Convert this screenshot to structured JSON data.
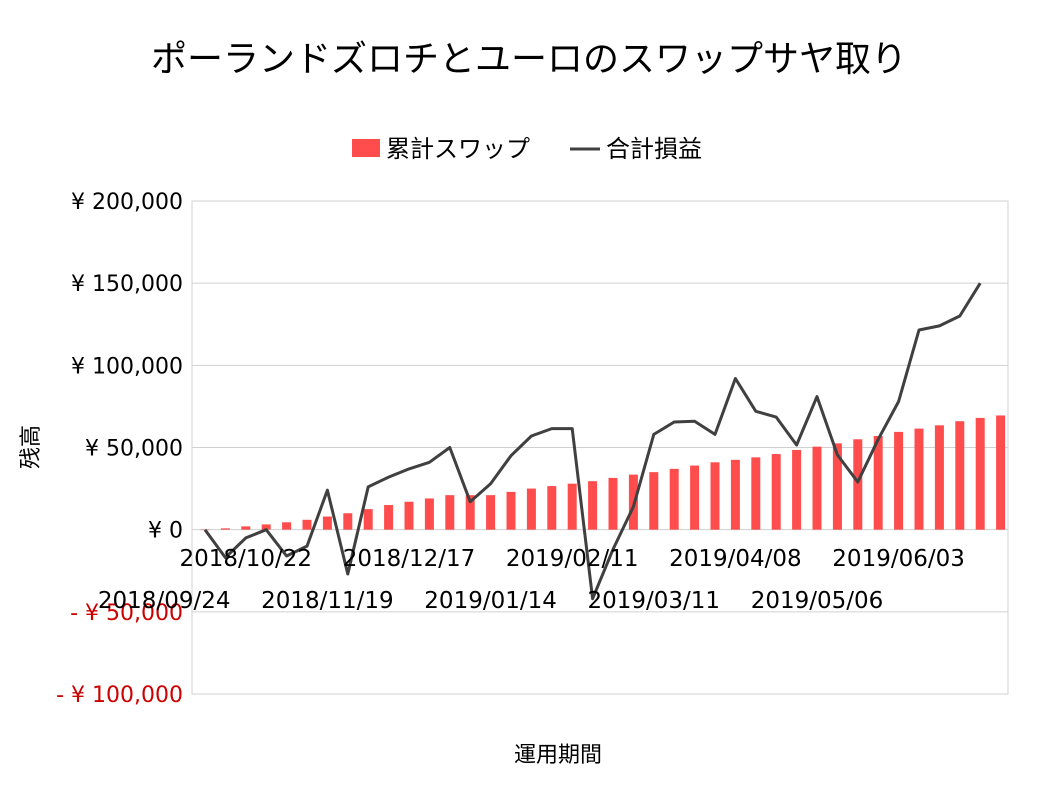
{
  "chart_data": {
    "type": "bar",
    "title": "ポーランドズロチとユーロのスワップサヤ取り",
    "xlabel": "運用期間",
    "ylabel": "残高",
    "ylim": [
      -100000,
      200000
    ],
    "y_ticks": [
      {
        "value": 200000,
        "label": "¥ 200,000"
      },
      {
        "value": 150000,
        "label": "¥ 150,000"
      },
      {
        "value": 100000,
        "label": "¥ 100,000"
      },
      {
        "value": 50000,
        "label": "¥ 50,000"
      },
      {
        "value": 0,
        "label": "¥ 0"
      },
      {
        "value": -50000,
        "label": "- ¥ 50,000"
      },
      {
        "value": -100000,
        "label": "- ¥ 100,000"
      }
    ],
    "legend_position": "top-center",
    "negative_tick_color": "#cc0000",
    "x_tick_labels": [
      {
        "index": 2,
        "row": 1,
        "label": "2018/10/22"
      },
      {
        "index": 10,
        "row": 1,
        "label": "2018/12/17"
      },
      {
        "index": 18,
        "row": 1,
        "label": "2019/02/11"
      },
      {
        "index": 26,
        "row": 1,
        "label": "2019/04/08"
      },
      {
        "index": 34,
        "row": 1,
        "label": "2019/06/03"
      },
      {
        "index": -2,
        "row": 2,
        "label": "2018/09/24"
      },
      {
        "index": 6,
        "row": 2,
        "label": "2018/11/19"
      },
      {
        "index": 14,
        "row": 2,
        "label": "2019/01/14"
      },
      {
        "index": 22,
        "row": 2,
        "label": "2019/03/11"
      },
      {
        "index": 30,
        "row": 2,
        "label": "2019/05/06"
      }
    ],
    "series": [
      {
        "name": "累計スワップ",
        "type": "bar",
        "color": "#ff4d4d",
        "values": [
          0,
          800,
          2000,
          3200,
          4500,
          6000,
          8000,
          10000,
          12500,
          15000,
          17000,
          19000,
          21000,
          21000,
          21000,
          23000,
          25000,
          26500,
          28000,
          29500,
          31500,
          33500,
          35000,
          37000,
          39000,
          41000,
          42500,
          44000,
          46000,
          48500,
          50500,
          52500,
          55000,
          57000,
          59500,
          61500,
          63500,
          66000,
          68000,
          69500
        ]
      },
      {
        "name": "合計損益",
        "type": "line",
        "color": "#404040",
        "values": [
          0,
          -17000,
          -5000,
          0,
          -16000,
          -10000,
          24000,
          -27000,
          26000,
          32000,
          37000,
          41000,
          50000,
          17000,
          28000,
          45000,
          57000,
          61500,
          61500,
          -42000,
          -12000,
          14000,
          58000,
          65500,
          66000,
          58000,
          92000,
          72000,
          68500,
          51500,
          81000,
          45500,
          29000,
          55000,
          78000,
          121500,
          124000,
          130000,
          150000
        ]
      }
    ]
  }
}
